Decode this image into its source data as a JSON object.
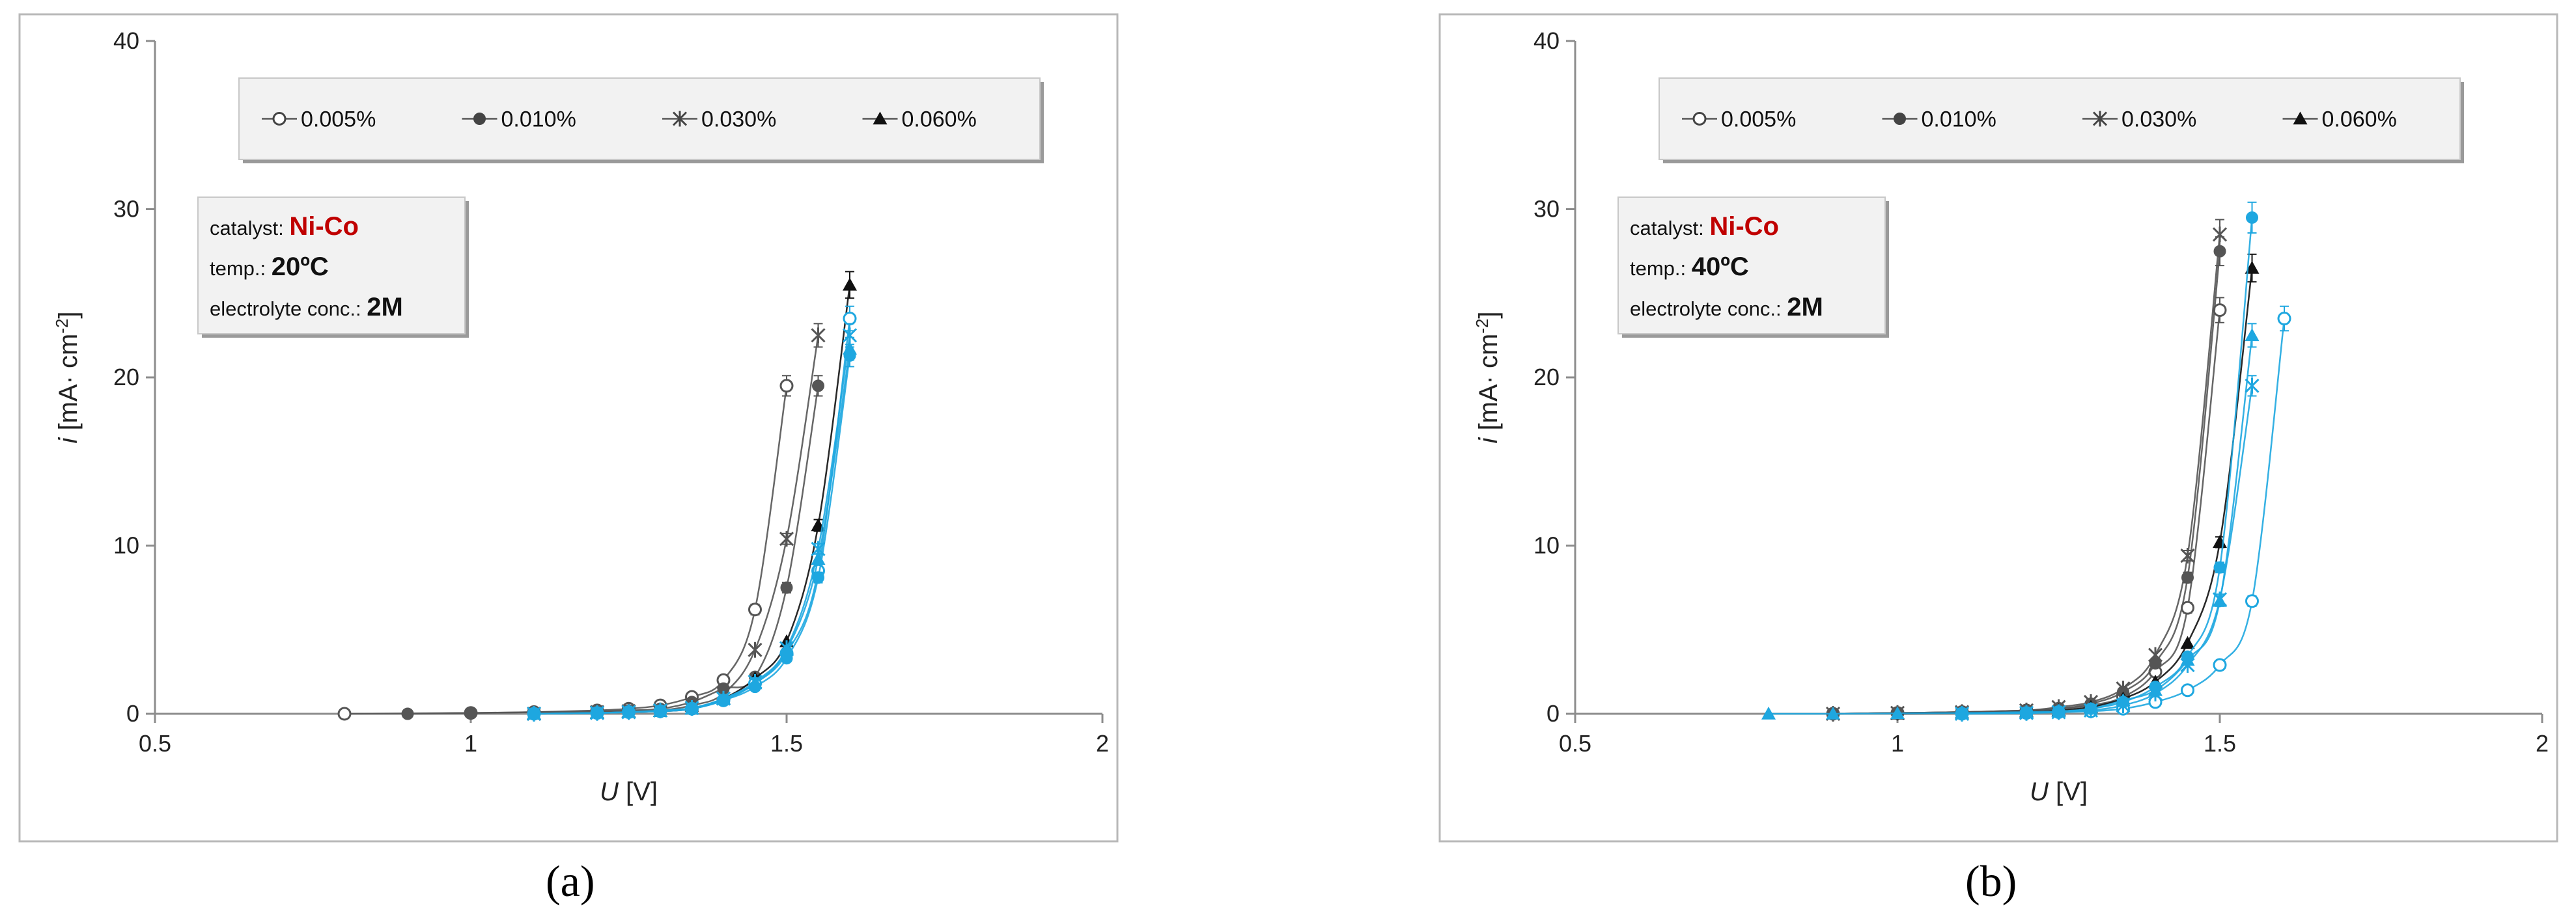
{
  "chart_data": [
    {
      "type": "scatter",
      "panel": "a",
      "caption": "(a)",
      "xlabel_italic": "U",
      "xlabel_rest": " [V]",
      "ylabel_italic": "i",
      "ylabel_rest": " [mA· cm",
      "ylabel_sup": "-2",
      "ylabel_close": "]",
      "xlim": [
        0.5,
        2
      ],
      "ylim": [
        0,
        40
      ],
      "xticks": [
        "0.5",
        "1",
        "1.5",
        "2"
      ],
      "yticks": [
        "0",
        "10",
        "20",
        "30",
        "40"
      ],
      "grid": false,
      "legend": [
        "0.005%",
        "0.010%",
        "0.030%",
        "0.060%"
      ],
      "info": {
        "catalyst_label": "catalyst: ",
        "catalyst_value": "Ni-Co",
        "temp_label": "temp.: ",
        "temp_value": "20ºC",
        "conc_label": "electrolyte conc.: ",
        "conc_value": "2M"
      },
      "series": [
        {
          "marker": "open-circle",
          "color": "#555555",
          "points": [
            [
              0.8,
              0
            ],
            [
              1.0,
              0.05
            ],
            [
              1.1,
              0.1
            ],
            [
              1.2,
              0.2
            ],
            [
              1.25,
              0.3
            ],
            [
              1.3,
              0.5
            ],
            [
              1.35,
              1.0
            ],
            [
              1.4,
              2.0
            ],
            [
              1.45,
              6.2
            ],
            [
              1.5,
              19.5
            ]
          ]
        },
        {
          "marker": "filled-circle",
          "color": "#555555",
          "points": [
            [
              0.9,
              0
            ],
            [
              1.0,
              0.05
            ],
            [
              1.1,
              0.1
            ],
            [
              1.2,
              0.15
            ],
            [
              1.25,
              0.2
            ],
            [
              1.3,
              0.3
            ],
            [
              1.35,
              0.7
            ],
            [
              1.4,
              1.5
            ],
            [
              1.45,
              2.2
            ],
            [
              1.5,
              7.5
            ],
            [
              1.55,
              19.5
            ]
          ]
        },
        {
          "marker": "star",
          "color": "#555555",
          "points": [
            [
              1.1,
              0
            ],
            [
              1.2,
              0.1
            ],
            [
              1.25,
              0.15
            ],
            [
              1.3,
              0.2
            ],
            [
              1.35,
              0.5
            ],
            [
              1.4,
              1.2
            ],
            [
              1.45,
              3.8
            ],
            [
              1.5,
              10.4
            ],
            [
              1.55,
              22.5
            ]
          ]
        },
        {
          "marker": "filled-triangle",
          "color": "#111111",
          "points": [
            [
              1.1,
              0
            ],
            [
              1.2,
              0.05
            ],
            [
              1.25,
              0.1
            ],
            [
              1.3,
              0.15
            ],
            [
              1.35,
              0.3
            ],
            [
              1.4,
              0.9
            ],
            [
              1.45,
              2.1
            ],
            [
              1.5,
              4.3
            ],
            [
              1.55,
              11.2
            ],
            [
              1.6,
              25.5
            ]
          ]
        },
        {
          "marker": "open-circle",
          "color": "#1ea7e0",
          "points": [
            [
              1.1,
              0
            ],
            [
              1.2,
              0.05
            ],
            [
              1.25,
              0.1
            ],
            [
              1.3,
              0.15
            ],
            [
              1.35,
              0.3
            ],
            [
              1.4,
              0.8
            ],
            [
              1.45,
              1.8
            ],
            [
              1.5,
              3.6
            ],
            [
              1.55,
              8.5
            ],
            [
              1.6,
              23.5
            ]
          ]
        },
        {
          "marker": "filled-circle",
          "color": "#1ea7e0",
          "points": [
            [
              1.1,
              0
            ],
            [
              1.2,
              0.05
            ],
            [
              1.25,
              0.1
            ],
            [
              1.3,
              0.15
            ],
            [
              1.35,
              0.3
            ],
            [
              1.4,
              0.8
            ],
            [
              1.45,
              1.6
            ],
            [
              1.5,
              3.3
            ],
            [
              1.55,
              8.1
            ],
            [
              1.6,
              21.3
            ]
          ]
        },
        {
          "marker": "star",
          "color": "#1ea7e0",
          "points": [
            [
              1.1,
              0
            ],
            [
              1.2,
              0.05
            ],
            [
              1.25,
              0.1
            ],
            [
              1.3,
              0.2
            ],
            [
              1.35,
              0.35
            ],
            [
              1.4,
              0.9
            ],
            [
              1.45,
              1.9
            ],
            [
              1.5,
              3.9
            ],
            [
              1.55,
              9.8
            ],
            [
              1.6,
              22.5
            ]
          ]
        },
        {
          "marker": "filled-triangle",
          "color": "#1ea7e0",
          "points": [
            [
              1.1,
              0
            ],
            [
              1.2,
              0.05
            ],
            [
              1.25,
              0.1
            ],
            [
              1.3,
              0.15
            ],
            [
              1.35,
              0.3
            ],
            [
              1.4,
              0.9
            ],
            [
              1.45,
              1.8
            ],
            [
              1.5,
              3.8
            ],
            [
              1.55,
              9.2
            ],
            [
              1.6,
              21.7
            ]
          ]
        }
      ]
    },
    {
      "type": "scatter",
      "panel": "b",
      "caption": "(b)",
      "xlabel_italic": "U",
      "xlabel_rest": " [V]",
      "ylabel_italic": "i",
      "ylabel_rest": " [mA· cm",
      "ylabel_sup": "-2",
      "ylabel_close": "]",
      "xlim": [
        0.5,
        2
      ],
      "ylim": [
        0,
        40
      ],
      "xticks": [
        "0.5",
        "1",
        "1.5",
        "2"
      ],
      "yticks": [
        "0",
        "10",
        "20",
        "30",
        "40"
      ],
      "grid": false,
      "legend": [
        "0.005%",
        "0.010%",
        "0.030%",
        "0.060%"
      ],
      "info": {
        "catalyst_label": "catalyst: ",
        "catalyst_value": "Ni-Co",
        "temp_label": "temp.: ",
        "temp_value": "40ºC",
        "conc_label": "electrolyte conc.: ",
        "conc_value": "2M"
      },
      "series": [
        {
          "marker": "open-circle",
          "color": "#555555",
          "points": [
            [
              0.9,
              0
            ],
            [
              1.0,
              0.05
            ],
            [
              1.1,
              0.1
            ],
            [
              1.2,
              0.2
            ],
            [
              1.25,
              0.3
            ],
            [
              1.3,
              0.5
            ],
            [
              1.35,
              1.0
            ],
            [
              1.4,
              2.5
            ],
            [
              1.45,
              6.3
            ],
            [
              1.5,
              24.0
            ]
          ]
        },
        {
          "marker": "filled-circle",
          "color": "#555555",
          "points": [
            [
              0.9,
              0
            ],
            [
              1.0,
              0.05
            ],
            [
              1.1,
              0.1
            ],
            [
              1.2,
              0.2
            ],
            [
              1.25,
              0.3
            ],
            [
              1.3,
              0.6
            ],
            [
              1.35,
              1.3
            ],
            [
              1.4,
              3.0
            ],
            [
              1.45,
              8.1
            ],
            [
              1.5,
              27.5
            ]
          ]
        },
        {
          "marker": "star",
          "color": "#555555",
          "points": [
            [
              0.9,
              0
            ],
            [
              1.0,
              0.05
            ],
            [
              1.1,
              0.1
            ],
            [
              1.2,
              0.2
            ],
            [
              1.25,
              0.4
            ],
            [
              1.3,
              0.7
            ],
            [
              1.35,
              1.5
            ],
            [
              1.4,
              3.5
            ],
            [
              1.45,
              9.4
            ],
            [
              1.5,
              28.5
            ]
          ]
        },
        {
          "marker": "filled-triangle",
          "color": "#111111",
          "points": [
            [
              1.0,
              0
            ],
            [
              1.1,
              0.05
            ],
            [
              1.2,
              0.1
            ],
            [
              1.25,
              0.2
            ],
            [
              1.3,
              0.4
            ],
            [
              1.35,
              0.9
            ],
            [
              1.4,
              1.9
            ],
            [
              1.45,
              4.2
            ],
            [
              1.5,
              10.2
            ],
            [
              1.55,
              26.5
            ]
          ]
        },
        {
          "marker": "open-circle",
          "color": "#1ea7e0",
          "points": [
            [
              1.1,
              0
            ],
            [
              1.2,
              0.05
            ],
            [
              1.25,
              0.1
            ],
            [
              1.3,
              0.15
            ],
            [
              1.35,
              0.3
            ],
            [
              1.4,
              0.7
            ],
            [
              1.45,
              1.4
            ],
            [
              1.5,
              2.9
            ],
            [
              1.55,
              6.7
            ],
            [
              1.6,
              23.5
            ]
          ]
        },
        {
          "marker": "filled-circle",
          "color": "#1ea7e0",
          "points": [
            [
              1.1,
              0
            ],
            [
              1.2,
              0.05
            ],
            [
              1.25,
              0.1
            ],
            [
              1.3,
              0.3
            ],
            [
              1.35,
              0.7
            ],
            [
              1.4,
              1.6
            ],
            [
              1.45,
              3.4
            ],
            [
              1.5,
              8.7
            ],
            [
              1.55,
              29.5
            ]
          ]
        },
        {
          "marker": "star",
          "color": "#1ea7e0",
          "points": [
            [
              1.1,
              0
            ],
            [
              1.2,
              0.05
            ],
            [
              1.25,
              0.1
            ],
            [
              1.3,
              0.2
            ],
            [
              1.35,
              0.5
            ],
            [
              1.4,
              1.2
            ],
            [
              1.45,
              2.9
            ],
            [
              1.5,
              6.8
            ],
            [
              1.55,
              19.5
            ]
          ]
        },
        {
          "marker": "filled-triangle",
          "color": "#1ea7e0",
          "points": [
            [
              0.8,
              0
            ],
            [
              0.9,
              0
            ],
            [
              1.0,
              0.02
            ],
            [
              1.1,
              0.05
            ],
            [
              1.2,
              0.1
            ],
            [
              1.25,
              0.15
            ],
            [
              1.3,
              0.3
            ],
            [
              1.35,
              0.8
            ],
            [
              1.4,
              1.4
            ],
            [
              1.45,
              3.2
            ],
            [
              1.5,
              6.7
            ],
            [
              1.55,
              22.5
            ]
          ]
        }
      ]
    }
  ]
}
